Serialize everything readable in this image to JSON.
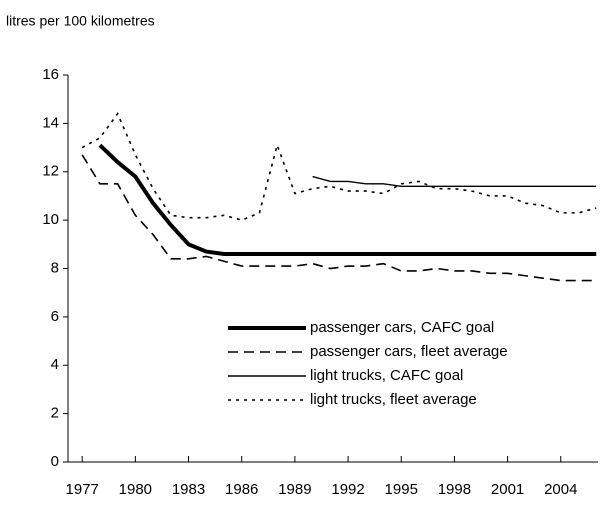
{
  "chart_data": {
    "type": "line",
    "title": "litres per 100 kilometres",
    "x": [
      1977,
      1978,
      1979,
      1980,
      1981,
      1982,
      1983,
      1984,
      1985,
      1986,
      1987,
      1988,
      1989,
      1990,
      1991,
      1992,
      1993,
      1994,
      1995,
      1996,
      1997,
      1998,
      1999,
      2000,
      2001,
      2002,
      2003,
      2004,
      2005,
      2006
    ],
    "xlim": [
      1976.2,
      2006.1
    ],
    "xticks": [
      1977,
      1980,
      1983,
      1986,
      1989,
      1992,
      1995,
      1998,
      2001,
      2004
    ],
    "ylim": [
      0,
      16
    ],
    "yticks": [
      0,
      2,
      4,
      6,
      8,
      10,
      12,
      14,
      16
    ],
    "series": [
      {
        "name": "passenger cars, CAFC goal",
        "color": "#000000",
        "style": "thick",
        "values": [
          null,
          13.1,
          12.4,
          11.8,
          10.7,
          9.8,
          9.0,
          8.7,
          8.6,
          8.6,
          8.6,
          8.6,
          8.6,
          8.6,
          8.6,
          8.6,
          8.6,
          8.6,
          8.6,
          8.6,
          8.6,
          8.6,
          8.6,
          8.6,
          8.6,
          8.6,
          8.6,
          8.6,
          8.6,
          8.6
        ]
      },
      {
        "name": "passenger cars, fleet average",
        "color": "#000000",
        "style": "dashed",
        "values": [
          12.7,
          11.5,
          11.5,
          10.2,
          9.4,
          8.4,
          8.4,
          8.5,
          8.3,
          8.1,
          8.1,
          8.1,
          8.1,
          8.2,
          8.0,
          8.1,
          8.1,
          8.2,
          7.9,
          7.9,
          8.0,
          7.9,
          7.9,
          7.8,
          7.8,
          7.7,
          7.6,
          7.5,
          7.5,
          7.5
        ]
      },
      {
        "name": "light trucks, CAFC goal",
        "color": "#000000",
        "style": "solid",
        "values": [
          null,
          null,
          null,
          null,
          null,
          null,
          null,
          null,
          null,
          null,
          null,
          null,
          null,
          11.8,
          11.6,
          11.6,
          11.5,
          11.5,
          11.4,
          11.4,
          11.4,
          11.4,
          11.4,
          11.4,
          11.4,
          11.4,
          11.4,
          11.4,
          11.4,
          11.4
        ]
      },
      {
        "name": "light trucks, fleet average",
        "color": "#000000",
        "style": "dotted",
        "values": [
          13.0,
          13.4,
          14.4,
          12.7,
          11.3,
          10.2,
          10.1,
          10.1,
          10.2,
          10.0,
          10.3,
          13.1,
          11.1,
          11.3,
          11.4,
          11.2,
          11.2,
          11.1,
          11.5,
          11.6,
          11.3,
          11.3,
          11.2,
          11.0,
          11.0,
          10.7,
          10.6,
          10.3,
          10.3,
          10.5
        ]
      }
    ],
    "legend": "lower right"
  }
}
